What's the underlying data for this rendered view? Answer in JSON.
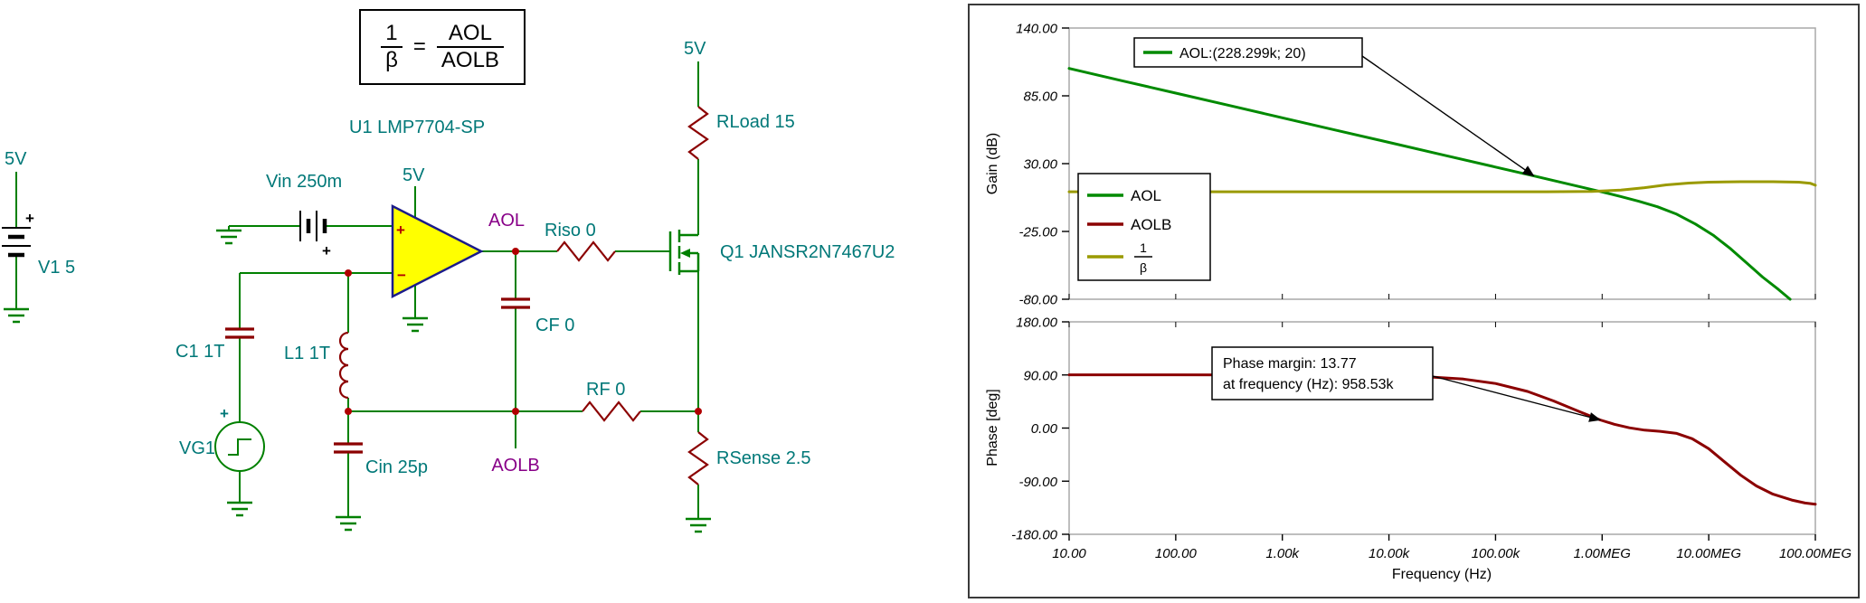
{
  "schematic": {
    "formula": {
      "num1": "1",
      "den1": "β",
      "equals": "=",
      "num2": "AOL",
      "den2": "AOLB"
    },
    "v1_supply": "5V",
    "v1": "V1 5",
    "vin": "Vin 250m",
    "opamp_ref": "U1 LMP7704-SP",
    "opamp_supply": "5V",
    "aol_node": "AOL",
    "riso": "Riso 0",
    "cf": "CF 0",
    "rf": "RF 0",
    "aolb_node": "AOLB",
    "c1": "C1 1T",
    "l1": "L1 1T",
    "vg1": "VG1",
    "cin": "Cin 25p",
    "rload_supply": "5V",
    "rload": "RLoad 15",
    "q1": "Q1 JANSR2N7467U2",
    "rsense": "RSense 2.5",
    "plus": "+",
    "minus": "−",
    "colors": {
      "wire": "#008000",
      "component": "#8b0000",
      "label": "#007878",
      "node_label": "#880088",
      "opamp_fill": "#ffff00"
    }
  },
  "plot": {
    "legend": {
      "frac_num": "1",
      "frac_den": "β"
    }
  },
  "x_axis": {
    "ticks": [
      10,
      100,
      1000,
      10000,
      100000,
      1000000,
      10000000,
      100000000
    ],
    "labels": [
      "10.00",
      "100.00",
      "1.00k",
      "10.00k",
      "100.00k",
      "1.00MEG",
      "10.00MEG",
      "100.00MEG"
    ],
    "title": "Frequency (Hz)"
  },
  "chart_data": [
    {
      "type": "line",
      "ylabel": "Gain (dB)",
      "xlabel": "Frequency (Hz)",
      "xscale": "log",
      "xlim": [
        10,
        100000000
      ],
      "ylim": [
        -80,
        140
      ],
      "yticks": [
        140,
        85,
        30,
        -25,
        -80
      ],
      "ytick_labels": [
        "140.00",
        "85.00",
        "30.00",
        "-25.00",
        "-80.00"
      ],
      "grid": false,
      "legend_position": "left-middle",
      "series": [
        {
          "name": "AOL",
          "color": "#008a00",
          "points": [
            [
              10,
              107.2
            ],
            [
              31.6,
              97.2
            ],
            [
              100,
              87.2
            ],
            [
              316,
              77.2
            ],
            [
              1000,
              67.2
            ],
            [
              3162,
              57.2
            ],
            [
              10000,
              47.2
            ],
            [
              31623,
              37.2
            ],
            [
              100000,
              27.2
            ],
            [
              228299,
              20
            ],
            [
              400000,
              15.1
            ],
            [
              958530,
              7.4
            ],
            [
              1500000,
              3.3
            ],
            [
              2200000,
              -0.5
            ],
            [
              3300000,
              -5
            ],
            [
              5000000,
              -11
            ],
            [
              7500000,
              -19
            ],
            [
              11000000,
              -28
            ],
            [
              16000000,
              -39
            ],
            [
              23000000,
              -51
            ],
            [
              32000000,
              -62
            ],
            [
              45000000,
              -72
            ],
            [
              58000000,
              -80
            ]
          ]
        },
        {
          "name": "1/β",
          "color": "#9a9a00",
          "points": [
            [
              10,
              7.2
            ],
            [
              100,
              7.2
            ],
            [
              10000,
              7.2
            ],
            [
              300000,
              7.2
            ],
            [
              800000,
              7.5
            ],
            [
              1500000,
              8.5
            ],
            [
              2500000,
              10.5
            ],
            [
              4000000,
              12.8
            ],
            [
              6500000,
              14.2
            ],
            [
              10000000,
              15
            ],
            [
              20000000,
              15.3
            ],
            [
              40000000,
              15.3
            ],
            [
              70000000,
              15
            ],
            [
              90000000,
              14
            ],
            [
              100000000,
              12.5
            ]
          ]
        }
      ],
      "annotation": {
        "text": "AOL:(228.299k; 20)",
        "target": [
          228299,
          20
        ]
      }
    },
    {
      "type": "line",
      "ylabel": "Phase [deg]",
      "xlabel": "Frequency (Hz)",
      "xscale": "log",
      "xlim": [
        10,
        100000000
      ],
      "ylim": [
        -180,
        180
      ],
      "yticks": [
        180,
        90,
        0,
        -90,
        -180
      ],
      "ytick_labels": [
        "180.00",
        "90.00",
        "0.00",
        "-90.00",
        "-180.00"
      ],
      "grid": false,
      "series": [
        {
          "name": "AOLB",
          "color": "#8b0000",
          "points": [
            [
              10,
              90.2
            ],
            [
              100,
              90.2
            ],
            [
              1000,
              90
            ],
            [
              3000,
              89.8
            ],
            [
              10000,
              89
            ],
            [
              20000,
              87.5
            ],
            [
              50000,
              83
            ],
            [
              100000,
              75.5
            ],
            [
              200000,
              62
            ],
            [
              350000,
              46
            ],
            [
              600000,
              28.5
            ],
            [
              958530,
              13.77
            ],
            [
              1300000,
              6.5
            ],
            [
              1800000,
              0.5
            ],
            [
              2500000,
              -3.5
            ],
            [
              3500000,
              -5.5
            ],
            [
              5000000,
              -9
            ],
            [
              7000000,
              -18
            ],
            [
              10000000,
              -35
            ],
            [
              14000000,
              -57
            ],
            [
              20000000,
              -80
            ],
            [
              28000000,
              -98
            ],
            [
              40000000,
              -112
            ],
            [
              60000000,
              -122
            ],
            [
              80000000,
              -127
            ],
            [
              100000000,
              -129
            ]
          ]
        }
      ],
      "annotation": {
        "lines": [
          "Phase margin: 13.77",
          "at frequency (Hz): 958.53k"
        ],
        "target": [
          958530,
          13.77
        ]
      }
    }
  ]
}
